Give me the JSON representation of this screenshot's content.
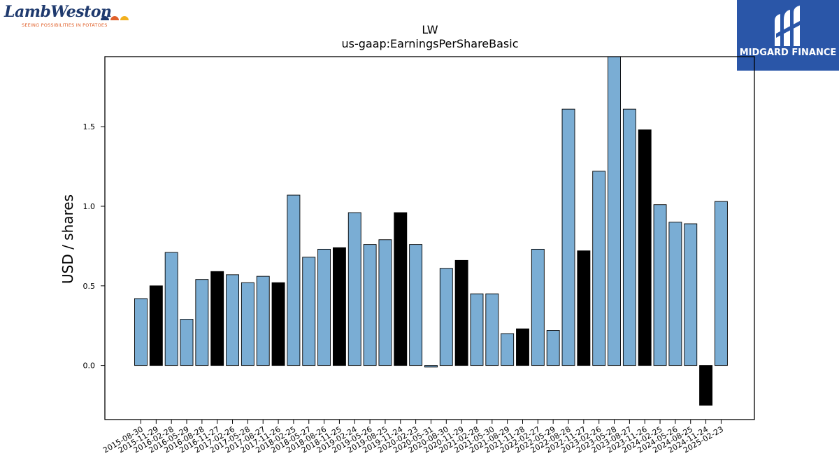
{
  "branding": {
    "left_logo_text": "LambWeston",
    "left_logo_tagline": "SEEING POSSIBILITIES IN POTATOES",
    "right_logo_text": "MIDGARD FINANCE",
    "right_logo_bg": "#2a56a8"
  },
  "chart_data": {
    "type": "bar",
    "title": "LW",
    "subtitle": "us-gaap:EarningsPerShareBasic",
    "xlabel": "",
    "ylabel": "USD / shares",
    "ylim": [
      -0.34,
      1.94
    ],
    "yticks": [
      0.0,
      0.5,
      1.0,
      1.5
    ],
    "grid": false,
    "colors": {
      "quarterly": "#7aadd4",
      "annual": "#000000",
      "edge": "#000000"
    },
    "categories": [
      "2015-08-30",
      "2015-11-29",
      "2016-02-28",
      "2016-05-29",
      "2016-08-28",
      "2016-11-27",
      "2017-02-26",
      "2017-05-28",
      "2017-08-27",
      "2017-11-26",
      "2018-02-25",
      "2018-05-27",
      "2018-08-26",
      "2018-11-25",
      "2019-02-24",
      "2019-05-26",
      "2019-08-25",
      "2019-11-24",
      "2020-02-23",
      "2020-05-31",
      "2020-08-30",
      "2020-11-29",
      "2021-02-28",
      "2021-05-30",
      "2021-08-29",
      "2021-11-28",
      "2022-02-27",
      "2022-05-29",
      "2022-08-28",
      "2022-11-27",
      "2023-02-26",
      "2023-05-28",
      "2023-08-27",
      "2023-11-26",
      "2024-02-25",
      "2024-05-26",
      "2024-08-25",
      "2024-11-24",
      "2025-02-23"
    ],
    "tick_labels": [
      "2015-08-30",
      "2015-11-29",
      "2016-02-28",
      "2016-05-29",
      "2016-08-28",
      "2016-11-27",
      "2017-02-26",
      "2017-05-28",
      "2017-08-27",
      "2017-11-26",
      "2018-02-25",
      "2018-05-27",
      "2018-08-26",
      "2018-11-25",
      "2019-02-24",
      "2019-05-26",
      "2019-08-25",
      "2019-11-24",
      "2020-02-23",
      "2020-05-31",
      "2020-08-30",
      "2020-11-29",
      "2021-02-28",
      "2021-05-30",
      "2021-08-29",
      "2021-11-28",
      "2022-02-27",
      "2022-05-29",
      "2022-08-28",
      "2022-11-27",
      "2023-02-26",
      "2023-05-28",
      "2023-08-27",
      "2023-11-26",
      "2024-02-25",
      "2024-05-26",
      "2024-08-25",
      "2024-11-24",
      "2025-02-23"
    ],
    "bar_positions": [
      "2015-08-30",
      "2015-11-29",
      "2016-02-28",
      "2016-05-29",
      "2016-08-28",
      "2016-11-27",
      "2017-02-26",
      "2017-05-28",
      "2017-08-27",
      "2017-11-26",
      "2018-02-25",
      "2018-05-27",
      "2018-08-26",
      "2018-11-25",
      "2019-02-24",
      "2019-05-26",
      "2019-08-25",
      "2019-11-24",
      "2020-02-23",
      "2020-05-31",
      "2020-08-30",
      "2020-11-29",
      "2021-02-28",
      "2021-05-30",
      "2021-08-29",
      "2021-11-28",
      "2022-02-27",
      "2022-05-29",
      "2022-08-28",
      "2022-11-27",
      "2023-02-26",
      "2023-05-28",
      "2023-08-27",
      "2023-11-26",
      "2024-02-25",
      "2024-05-26",
      "2024-08-25",
      "2024-11-24",
      "2025-02-23"
    ],
    "values": [
      0.42,
      0.5,
      0.71,
      0.29,
      0.54,
      0.59,
      0.57,
      0.52,
      0.56,
      0.52,
      1.07,
      0.68,
      0.73,
      0.74,
      0.96,
      0.76,
      0.79,
      0.96,
      0.76,
      -0.01,
      0.61,
      0.66,
      0.45,
      0.45,
      0.2,
      0.23,
      0.73,
      0.22,
      1.61,
      0.72,
      1.22,
      1.94,
      1.61,
      1.48,
      1.01,
      0.9,
      0.89,
      -0.25,
      1.03
    ],
    "bar_kind": [
      "q",
      "a",
      "q",
      "q",
      "q",
      "a",
      "q",
      "q",
      "q",
      "a",
      "q",
      "q",
      "q",
      "a",
      "q",
      "q",
      "q",
      "a",
      "q",
      "q",
      "q",
      "a",
      "q",
      "q",
      "q",
      "a",
      "q",
      "q",
      "q",
      "a",
      "q",
      "q",
      "q",
      "a",
      "q",
      "q",
      "q",
      "a",
      "q"
    ]
  }
}
